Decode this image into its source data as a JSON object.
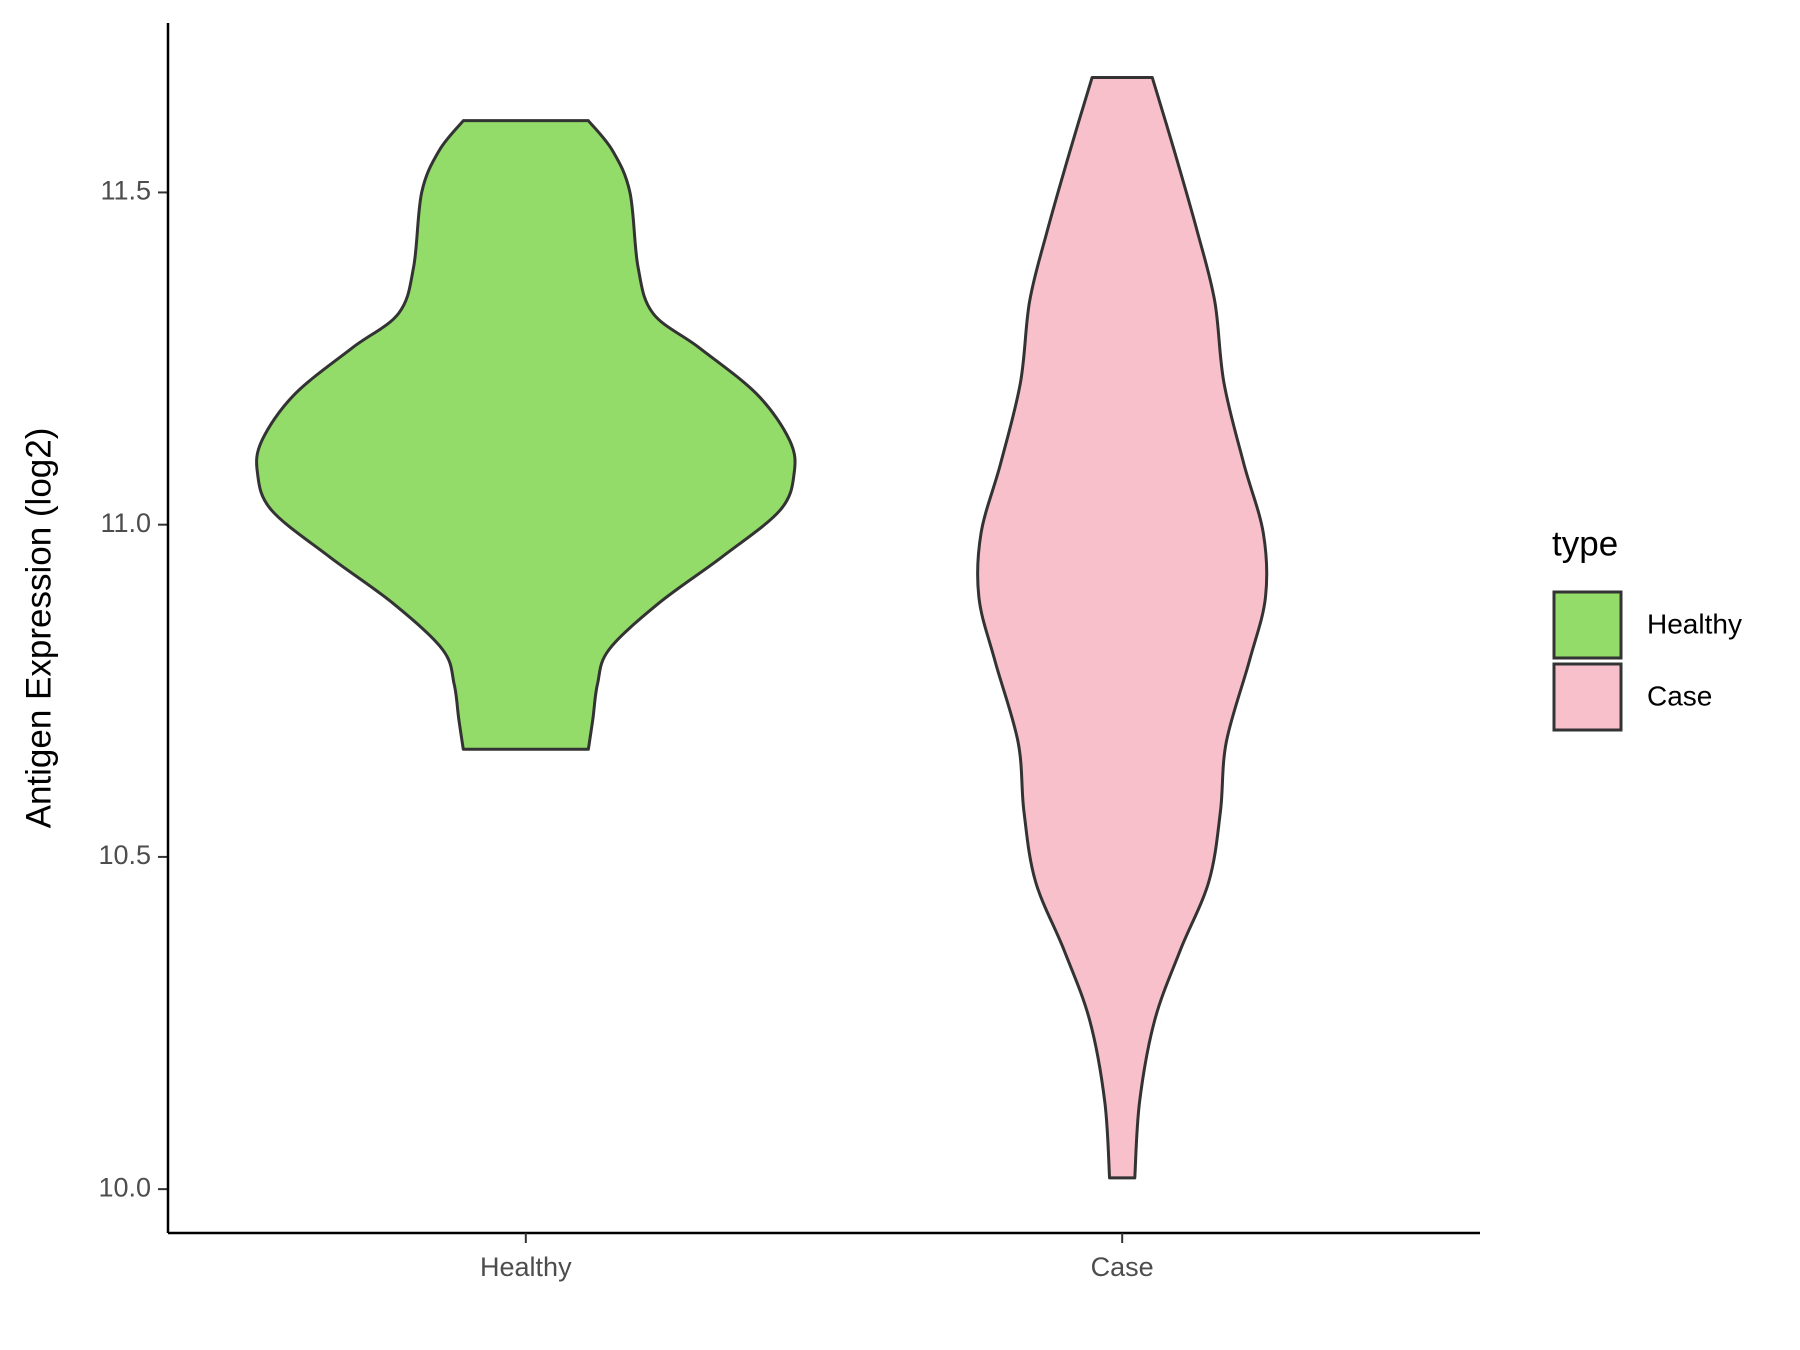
{
  "chart_data": {
    "type": "violin",
    "y_label": "Antigen Expression (log2)",
    "categories": [
      "Healthy",
      "Case"
    ],
    "legend_title": "type",
    "legend_position": "right",
    "ylim": [
      9.934,
      11.755
    ],
    "yticks": [
      {
        "value": 10,
        "label": "10.0"
      },
      10.5,
      {
        "value": 11,
        "label": "11.0"
      },
      11.5
    ],
    "series": [
      {
        "name": "Healthy",
        "color": "#93dc6a",
        "y": [
          11.608,
          11.563,
          11.5,
          11.388,
          11.318,
          11.266,
          11.196,
          11.127,
          11.078,
          11.022,
          10.952,
          10.882,
          10.812,
          10.76,
          10.708,
          10.662
        ],
        "density": [
          0.233,
          0.323,
          0.388,
          0.418,
          0.474,
          0.647,
          0.862,
          0.983,
          1,
          0.948,
          0.733,
          0.496,
          0.31,
          0.267,
          0.25,
          0.233
        ]
      },
      {
        "name": "Case",
        "color": "#f8c0cb",
        "y": [
          11.673,
          11.563,
          11.441,
          11.336,
          11.214,
          11.092,
          10.987,
          10.891,
          10.795,
          10.673,
          10.568,
          10.463,
          10.359,
          10.254,
          10.132,
          10.017
        ],
        "density": [
          0.112,
          0.194,
          0.28,
          0.345,
          0.379,
          0.453,
          0.526,
          0.534,
          0.474,
          0.388,
          0.366,
          0.323,
          0.216,
          0.121,
          0.065,
          0.047
        ]
      }
    ]
  }
}
